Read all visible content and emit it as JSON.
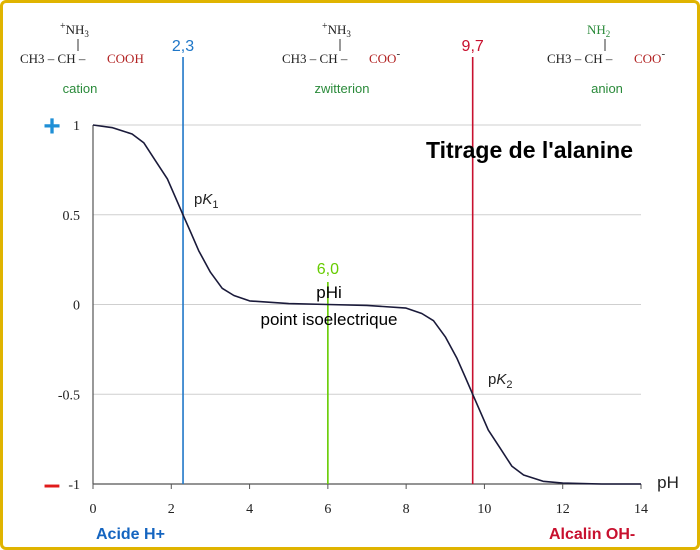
{
  "colors": {
    "curve": "#1a1a3a",
    "pk1_line": "#1f77c8",
    "pk2_line": "#c8102e",
    "pi_line": "#66cc00",
    "species_label": "#2a8a3a",
    "carboxyl": "#b22222",
    "plus_sign": "#1f8fd6",
    "minus_sign": "#e01b1b",
    "acid_label": "#1565c0",
    "alkali_label": "#c8102e",
    "frame": "#e0b400",
    "grid": "#cfcfcf"
  },
  "species": [
    {
      "name": "cation",
      "amino": "NH3",
      "amino_charge": "+",
      "backbone": "CH3 – CH –",
      "carboxyl": "COOH",
      "carboxyl_charge": ""
    },
    {
      "name": "zwitterion",
      "amino": "NH3",
      "amino_charge": "+",
      "backbone": "CH3 – CH –",
      "carboxyl": "COO",
      "carboxyl_charge": "-"
    },
    {
      "name": "anion",
      "amino": "NH2",
      "amino_charge": "",
      "backbone": "CH3 – CH –",
      "carboxyl": "COO",
      "carboxyl_charge": "-"
    }
  ],
  "sign_labels": {
    "plus": "+",
    "minus": "–"
  },
  "side_labels": {
    "acid": "Acide H+",
    "alkali": "Alcalin OH-"
  },
  "chart_data": {
    "type": "line",
    "title": "Titrage de l'alanine",
    "xlabel": "pH",
    "ylabel": "",
    "xlim": [
      0,
      14
    ],
    "ylim": [
      -1,
      1
    ],
    "xticks": [
      0,
      2,
      4,
      6,
      8,
      10,
      12,
      14
    ],
    "yticks": [
      1,
      0.5,
      0,
      -0.5,
      -1
    ],
    "ytick_labels": [
      "1",
      "0.5",
      "0",
      "-0.5",
      "-1"
    ],
    "grid": true,
    "pK1": 2.3,
    "pK2": 9.7,
    "pI": 6.0,
    "markers": [
      {
        "label": "2,3",
        "x": 2.3
      },
      {
        "label": "6,0",
        "x": 6.0
      },
      {
        "label": "9,7",
        "x": 9.7
      }
    ],
    "annotations": {
      "pk1": {
        "prefix": "p",
        "letter": "K",
        "sub": "1"
      },
      "pk2": {
        "prefix": "p",
        "letter": "K",
        "sub": "2"
      },
      "phi": "pHi",
      "isoelectric": "point isoelectrique"
    },
    "series": [
      {
        "x": [
          0,
          0.5,
          1.0,
          1.3,
          1.6,
          1.9,
          2.1,
          2.3,
          2.5,
          2.7,
          3.0,
          3.3,
          3.6,
          4.0,
          5.0,
          6.0,
          7.0,
          8.0,
          8.4,
          8.7,
          9.0,
          9.3,
          9.5,
          9.7,
          9.9,
          10.1,
          10.4,
          10.7,
          11.0,
          11.5,
          12.0,
          13.0,
          14.0
        ],
        "y": [
          1.0,
          0.985,
          0.95,
          0.9,
          0.8,
          0.7,
          0.6,
          0.5,
          0.4,
          0.3,
          0.18,
          0.09,
          0.05,
          0.02,
          0.005,
          0.0,
          -0.005,
          -0.02,
          -0.05,
          -0.09,
          -0.18,
          -0.3,
          -0.4,
          -0.5,
          -0.6,
          -0.7,
          -0.8,
          -0.9,
          -0.95,
          -0.985,
          -0.995,
          -1.0,
          -1.0
        ]
      }
    ]
  }
}
